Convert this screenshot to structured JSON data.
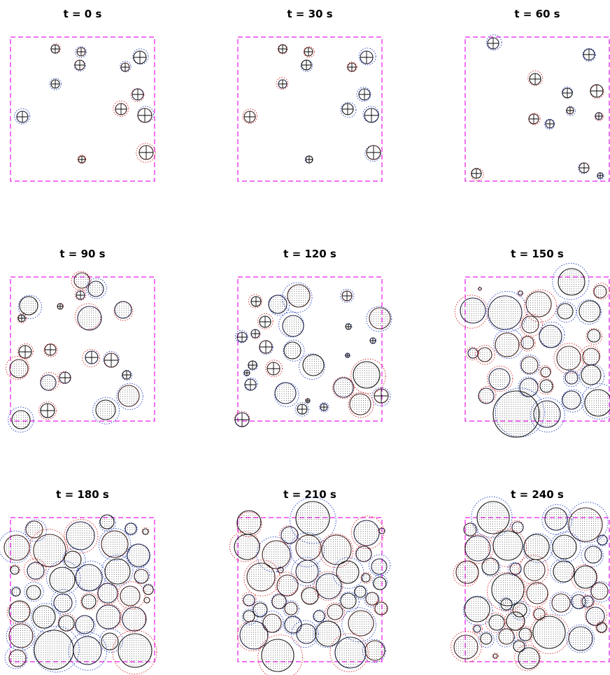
{
  "figure": {
    "panels": [
      {
        "title": "t = 0 s"
      },
      {
        "title": "t = 30 s"
      },
      {
        "title": "t = 60 s"
      },
      {
        "title": "t = 90 s"
      },
      {
        "title": "t = 120 s"
      },
      {
        "title": "t = 150 s"
      },
      {
        "title": "t = 180 s"
      },
      {
        "title": "t = 210 s"
      },
      {
        "title": "t = 240 s"
      }
    ],
    "colors": {
      "domain_boundary": "#ee44ee",
      "particle_outline": "#000000",
      "predicted_outline_red": "#d62728",
      "predicted_outline_blue": "#1f3fbf",
      "interior_points": "#000000"
    }
  }
}
